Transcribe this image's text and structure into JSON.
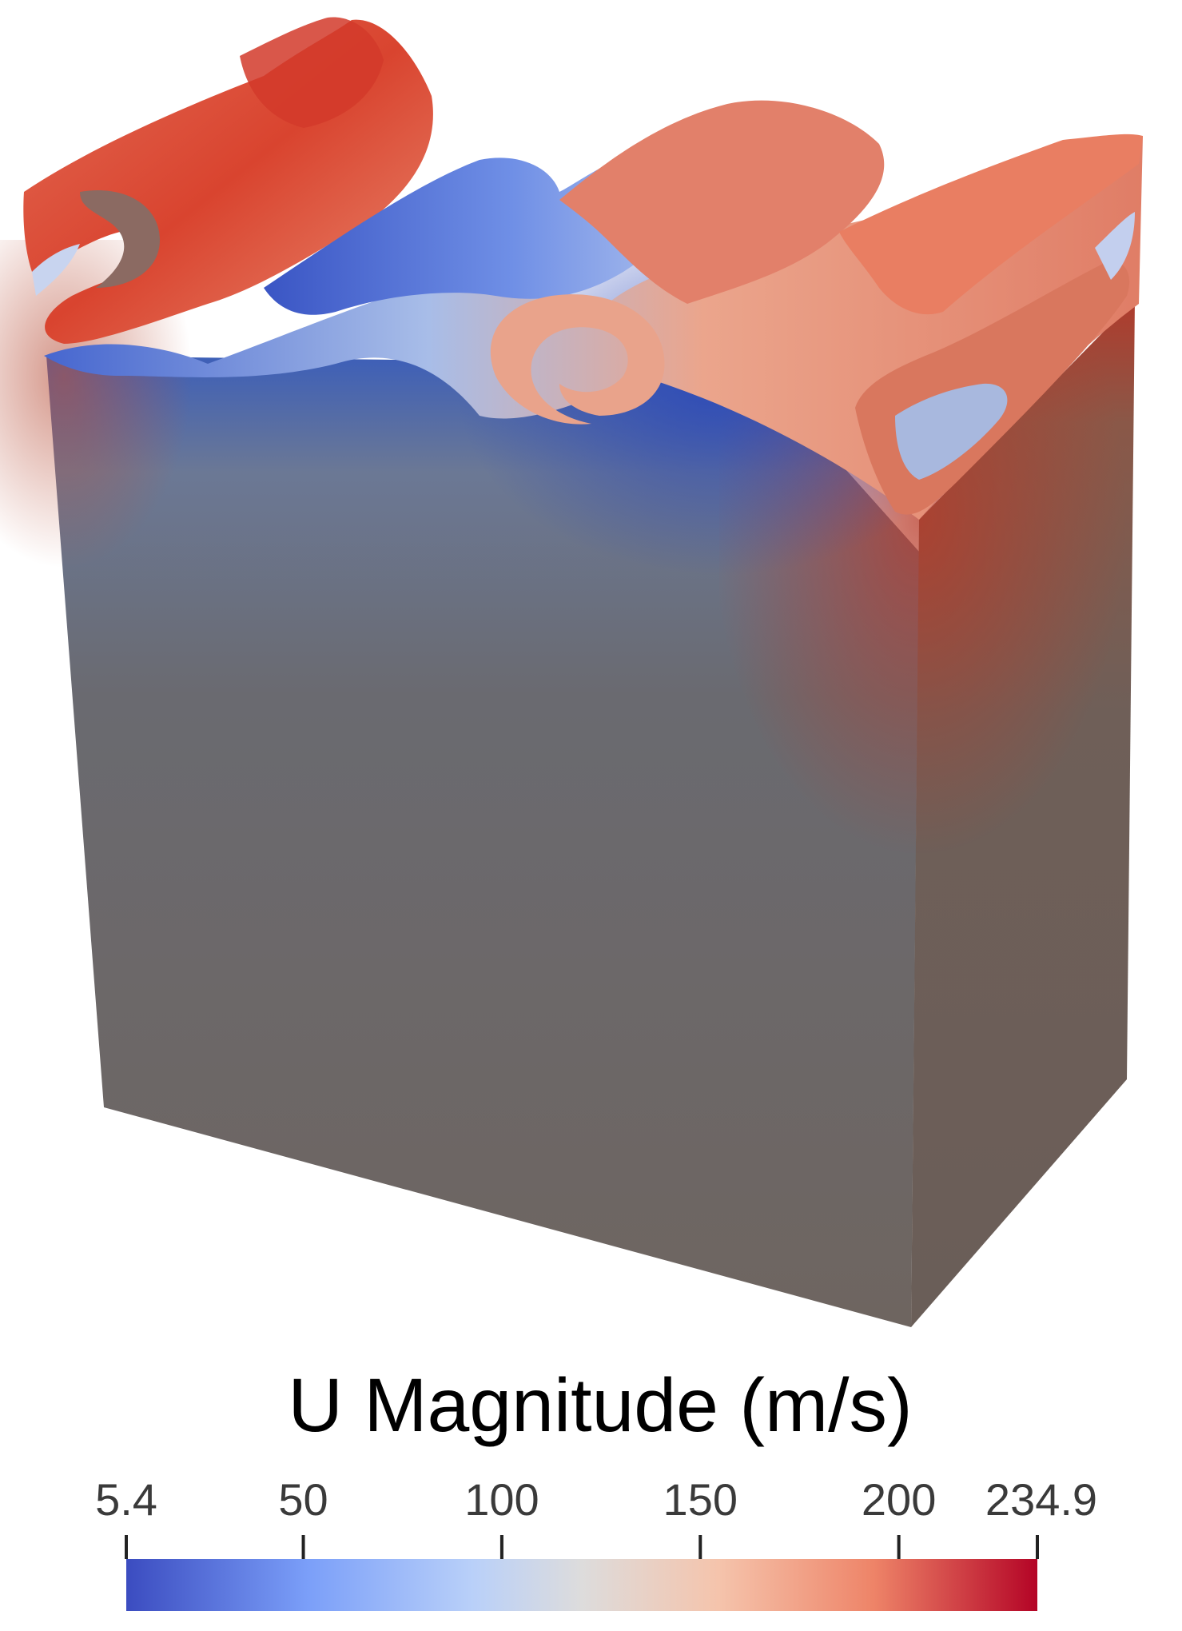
{
  "figure": {
    "description_label": "3D velocity-magnitude rendering"
  },
  "colorbar": {
    "title": "U Magnitude (m/s)",
    "min": 5.4,
    "max": 234.9,
    "ticks": [
      {
        "value": 5.4,
        "label": "5.4"
      },
      {
        "value": 50,
        "label": "50"
      },
      {
        "value": 100,
        "label": "100"
      },
      {
        "value": 150,
        "label": "150"
      },
      {
        "value": 200,
        "label": "200"
      },
      {
        "value": 234.9,
        "label": "234.9"
      }
    ],
    "colors": {
      "low": "#3b4cc0",
      "mid": "#dddddd",
      "high": "#b40426"
    }
  },
  "colors": {
    "box_front": "#6e6560",
    "box_side": "#6a5e58",
    "background": "#ffffff"
  }
}
